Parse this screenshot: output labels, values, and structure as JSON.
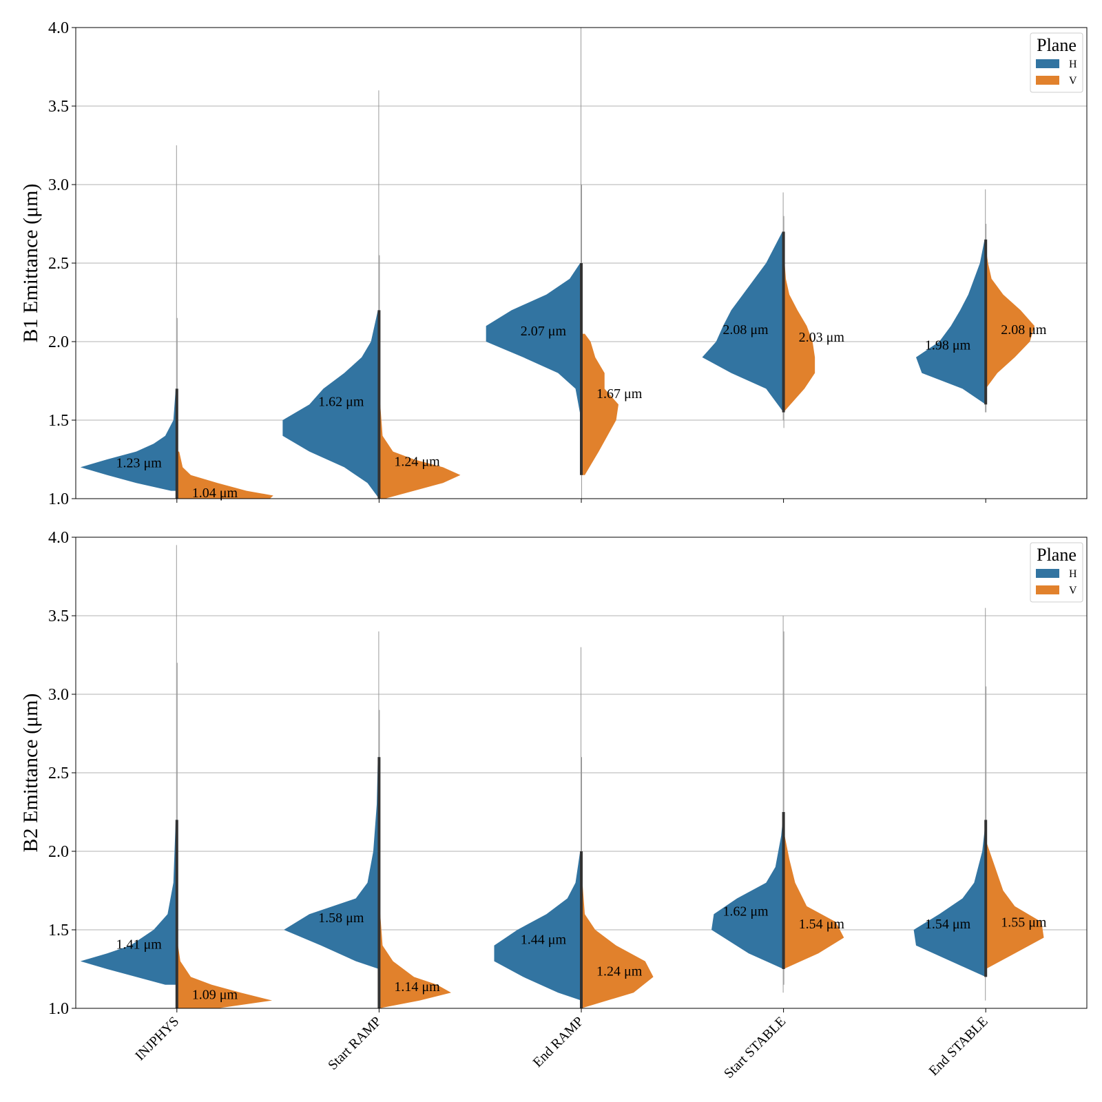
{
  "chart_data": [
    {
      "type": "violin",
      "ylabel": "B1 Emittance (μm)",
      "ylim": [
        1.0,
        4.0
      ],
      "yticks": [
        "1.0",
        "1.5",
        "2.0",
        "2.5",
        "3.0",
        "3.5",
        "4.0"
      ],
      "grid": true,
      "categories": [
        "INJPHYS",
        "Start RAMP",
        "End RAMP",
        "Start STABLE",
        "End STABLE"
      ],
      "legend": {
        "title": "Plane",
        "placement": "top-right"
      },
      "series": [
        {
          "name": "H",
          "color": "#3274a1",
          "medians": [
            1.23,
            1.62,
            2.07,
            2.08,
            1.98
          ],
          "median_labels": [
            "1.23 μm",
            "1.62 μm",
            "2.07 μm",
            "2.08 μm",
            "1.98 μm"
          ],
          "ranges": [
            [
              1.05,
              3.25
            ],
            [
              1.0,
              3.6
            ],
            [
              1.5,
              4.0
            ],
            [
              1.5,
              2.95
            ],
            [
              1.55,
              2.97
            ]
          ],
          "density": [
            [
              [
                1.05,
                0.05
              ],
              [
                1.1,
                0.35
              ],
              [
                1.15,
                0.6
              ],
              [
                1.2,
                0.83
              ],
              [
                1.25,
                0.6
              ],
              [
                1.3,
                0.35
              ],
              [
                1.35,
                0.2
              ],
              [
                1.4,
                0.1
              ],
              [
                1.5,
                0.03
              ],
              [
                1.7,
                0.01
              ]
            ],
            [
              [
                1.0,
                0.0
              ],
              [
                1.1,
                0.1
              ],
              [
                1.2,
                0.3
              ],
              [
                1.3,
                0.6
              ],
              [
                1.4,
                0.83
              ],
              [
                1.5,
                0.83
              ],
              [
                1.6,
                0.6
              ],
              [
                1.7,
                0.48
              ],
              [
                1.8,
                0.3
              ],
              [
                1.9,
                0.15
              ],
              [
                2.0,
                0.07
              ],
              [
                2.2,
                0.01
              ]
            ],
            [
              [
                1.5,
                0.0
              ],
              [
                1.7,
                0.05
              ],
              [
                1.8,
                0.2
              ],
              [
                1.9,
                0.5
              ],
              [
                2.0,
                0.82
              ],
              [
                2.1,
                0.82
              ],
              [
                2.2,
                0.6
              ],
              [
                2.3,
                0.3
              ],
              [
                2.4,
                0.1
              ],
              [
                2.5,
                0.01
              ]
            ],
            [
              [
                1.55,
                0.0
              ],
              [
                1.7,
                0.15
              ],
              [
                1.8,
                0.45
              ],
              [
                1.9,
                0.7
              ],
              [
                2.0,
                0.58
              ],
              [
                2.1,
                0.52
              ],
              [
                2.2,
                0.45
              ],
              [
                2.3,
                0.35
              ],
              [
                2.5,
                0.15
              ],
              [
                2.7,
                0.01
              ]
            ],
            [
              [
                1.6,
                0.0
              ],
              [
                1.7,
                0.2
              ],
              [
                1.8,
                0.55
              ],
              [
                1.9,
                0.6
              ],
              [
                2.0,
                0.4
              ],
              [
                2.1,
                0.3
              ],
              [
                2.2,
                0.22
              ],
              [
                2.3,
                0.15
              ],
              [
                2.5,
                0.05
              ],
              [
                2.65,
                0.01
              ]
            ]
          ]
        },
        {
          "name": "V",
          "color": "#e1812c",
          "medians": [
            1.04,
            1.24,
            1.67,
            2.03,
            2.08
          ],
          "median_labels": [
            "1.04 μm",
            "1.24 μm",
            "1.67 μm",
            "2.03 μm",
            "2.08 μm"
          ],
          "ranges": [
            [
              1.0,
              2.15
            ],
            [
              1.0,
              2.55
            ],
            [
              1.0,
              3.0
            ],
            [
              1.45,
              2.8
            ],
            [
              1.55,
              2.75
            ]
          ],
          "density": [
            [
              [
                1.0,
                0.8
              ],
              [
                1.02,
                0.83
              ],
              [
                1.05,
                0.6
              ],
              [
                1.1,
                0.35
              ],
              [
                1.15,
                0.12
              ],
              [
                1.2,
                0.05
              ],
              [
                1.3,
                0.02
              ]
            ],
            [
              [
                1.0,
                0.05
              ],
              [
                1.05,
                0.3
              ],
              [
                1.1,
                0.55
              ],
              [
                1.15,
                0.7
              ],
              [
                1.2,
                0.55
              ],
              [
                1.25,
                0.3
              ],
              [
                1.3,
                0.12
              ],
              [
                1.4,
                0.03
              ],
              [
                1.6,
                0.01
              ]
            ],
            [
              [
                1.15,
                0.03
              ],
              [
                1.3,
                0.15
              ],
              [
                1.5,
                0.3
              ],
              [
                1.6,
                0.32
              ],
              [
                1.7,
                0.2
              ],
              [
                1.8,
                0.2
              ],
              [
                1.9,
                0.12
              ],
              [
                2.0,
                0.08
              ],
              [
                2.05,
                0.03
              ]
            ],
            [
              [
                1.55,
                0.0
              ],
              [
                1.7,
                0.18
              ],
              [
                1.8,
                0.27
              ],
              [
                1.9,
                0.27
              ],
              [
                2.0,
                0.25
              ],
              [
                2.1,
                0.2
              ],
              [
                2.2,
                0.12
              ],
              [
                2.3,
                0.05
              ],
              [
                2.4,
                0.02
              ],
              [
                2.6,
                0.0
              ]
            ],
            [
              [
                1.7,
                0.0
              ],
              [
                1.8,
                0.1
              ],
              [
                1.9,
                0.25
              ],
              [
                2.0,
                0.38
              ],
              [
                2.1,
                0.42
              ],
              [
                2.2,
                0.3
              ],
              [
                2.3,
                0.15
              ],
              [
                2.4,
                0.05
              ],
              [
                2.5,
                0.02
              ],
              [
                2.6,
                0.0
              ]
            ]
          ]
        }
      ]
    },
    {
      "type": "violin",
      "ylabel": "B2 Emittance (μm)",
      "ylim": [
        1.0,
        4.0
      ],
      "yticks": [
        "1.0",
        "1.5",
        "2.0",
        "2.5",
        "3.0",
        "3.5",
        "4.0"
      ],
      "grid": true,
      "categories": [
        "INJPHYS",
        "Start RAMP",
        "End RAMP",
        "Start STABLE",
        "End STABLE"
      ],
      "legend": {
        "title": "Plane",
        "placement": "top-right"
      },
      "series": [
        {
          "name": "H",
          "color": "#3274a1",
          "medians": [
            1.41,
            1.58,
            1.44,
            1.62,
            1.54
          ],
          "median_labels": [
            "1.41 μm",
            "1.58 μm",
            "1.44 μm",
            "1.62 μm",
            "1.54 μm"
          ],
          "ranges": [
            [
              1.1,
              3.95
            ],
            [
              1.2,
              3.4
            ],
            [
              1.0,
              3.3
            ],
            [
              1.1,
              3.5
            ],
            [
              1.05,
              3.55
            ]
          ],
          "density": [
            [
              [
                1.15,
                0.1
              ],
              [
                1.2,
                0.35
              ],
              [
                1.25,
                0.6
              ],
              [
                1.3,
                0.83
              ],
              [
                1.35,
                0.6
              ],
              [
                1.4,
                0.4
              ],
              [
                1.5,
                0.2
              ],
              [
                1.6,
                0.08
              ],
              [
                1.8,
                0.03
              ],
              [
                2.2,
                0.01
              ]
            ],
            [
              [
                1.25,
                0.0
              ],
              [
                1.3,
                0.2
              ],
              [
                1.4,
                0.5
              ],
              [
                1.5,
                0.82
              ],
              [
                1.6,
                0.6
              ],
              [
                1.7,
                0.2
              ],
              [
                1.8,
                0.1
              ],
              [
                2.0,
                0.05
              ],
              [
                2.3,
                0.02
              ],
              [
                2.6,
                0.01
              ]
            ],
            [
              [
                1.05,
                0.0
              ],
              [
                1.1,
                0.2
              ],
              [
                1.2,
                0.5
              ],
              [
                1.3,
                0.75
              ],
              [
                1.4,
                0.75
              ],
              [
                1.5,
                0.55
              ],
              [
                1.6,
                0.3
              ],
              [
                1.7,
                0.12
              ],
              [
                1.8,
                0.05
              ],
              [
                2.0,
                0.01
              ]
            ],
            [
              [
                1.25,
                0.0
              ],
              [
                1.35,
                0.3
              ],
              [
                1.5,
                0.62
              ],
              [
                1.6,
                0.6
              ],
              [
                1.7,
                0.4
              ],
              [
                1.8,
                0.15
              ],
              [
                1.9,
                0.07
              ],
              [
                2.1,
                0.02
              ],
              [
                2.25,
                0.0
              ]
            ],
            [
              [
                1.2,
                0.0
              ],
              [
                1.3,
                0.3
              ],
              [
                1.4,
                0.6
              ],
              [
                1.5,
                0.62
              ],
              [
                1.6,
                0.4
              ],
              [
                1.7,
                0.2
              ],
              [
                1.8,
                0.1
              ],
              [
                2.0,
                0.03
              ],
              [
                2.2,
                0.0
              ]
            ]
          ]
        },
        {
          "name": "V",
          "color": "#e1812c",
          "medians": [
            1.09,
            1.14,
            1.24,
            1.54,
            1.55
          ],
          "median_labels": [
            "1.09 μm",
            "1.14 μm",
            "1.24 μm",
            "1.54 μm",
            "1.55 μm"
          ],
          "ranges": [
            [
              1.0,
              3.2
            ],
            [
              1.0,
              2.9
            ],
            [
              1.0,
              2.6
            ],
            [
              1.15,
              3.4
            ],
            [
              1.2,
              3.05
            ]
          ],
          "density": [
            [
              [
                1.0,
                0.35
              ],
              [
                1.05,
                0.82
              ],
              [
                1.1,
                0.55
              ],
              [
                1.15,
                0.3
              ],
              [
                1.2,
                0.12
              ],
              [
                1.3,
                0.03
              ],
              [
                1.4,
                0.01
              ]
            ],
            [
              [
                1.0,
                0.0
              ],
              [
                1.05,
                0.35
              ],
              [
                1.1,
                0.62
              ],
              [
                1.15,
                0.5
              ],
              [
                1.2,
                0.3
              ],
              [
                1.3,
                0.12
              ],
              [
                1.4,
                0.03
              ],
              [
                1.6,
                0.01
              ]
            ],
            [
              [
                1.0,
                0.0
              ],
              [
                1.1,
                0.45
              ],
              [
                1.2,
                0.62
              ],
              [
                1.3,
                0.55
              ],
              [
                1.4,
                0.3
              ],
              [
                1.5,
                0.12
              ],
              [
                1.6,
                0.03
              ],
              [
                1.8,
                0.01
              ]
            ],
            [
              [
                1.25,
                0.0
              ],
              [
                1.35,
                0.3
              ],
              [
                1.45,
                0.52
              ],
              [
                1.55,
                0.45
              ],
              [
                1.65,
                0.2
              ],
              [
                1.8,
                0.1
              ],
              [
                1.95,
                0.05
              ],
              [
                2.1,
                0.01
              ]
            ],
            [
              [
                1.25,
                0.0
              ],
              [
                1.35,
                0.25
              ],
              [
                1.45,
                0.5
              ],
              [
                1.55,
                0.48
              ],
              [
                1.65,
                0.25
              ],
              [
                1.75,
                0.15
              ],
              [
                1.9,
                0.08
              ],
              [
                2.05,
                0.01
              ]
            ]
          ]
        }
      ]
    }
  ]
}
